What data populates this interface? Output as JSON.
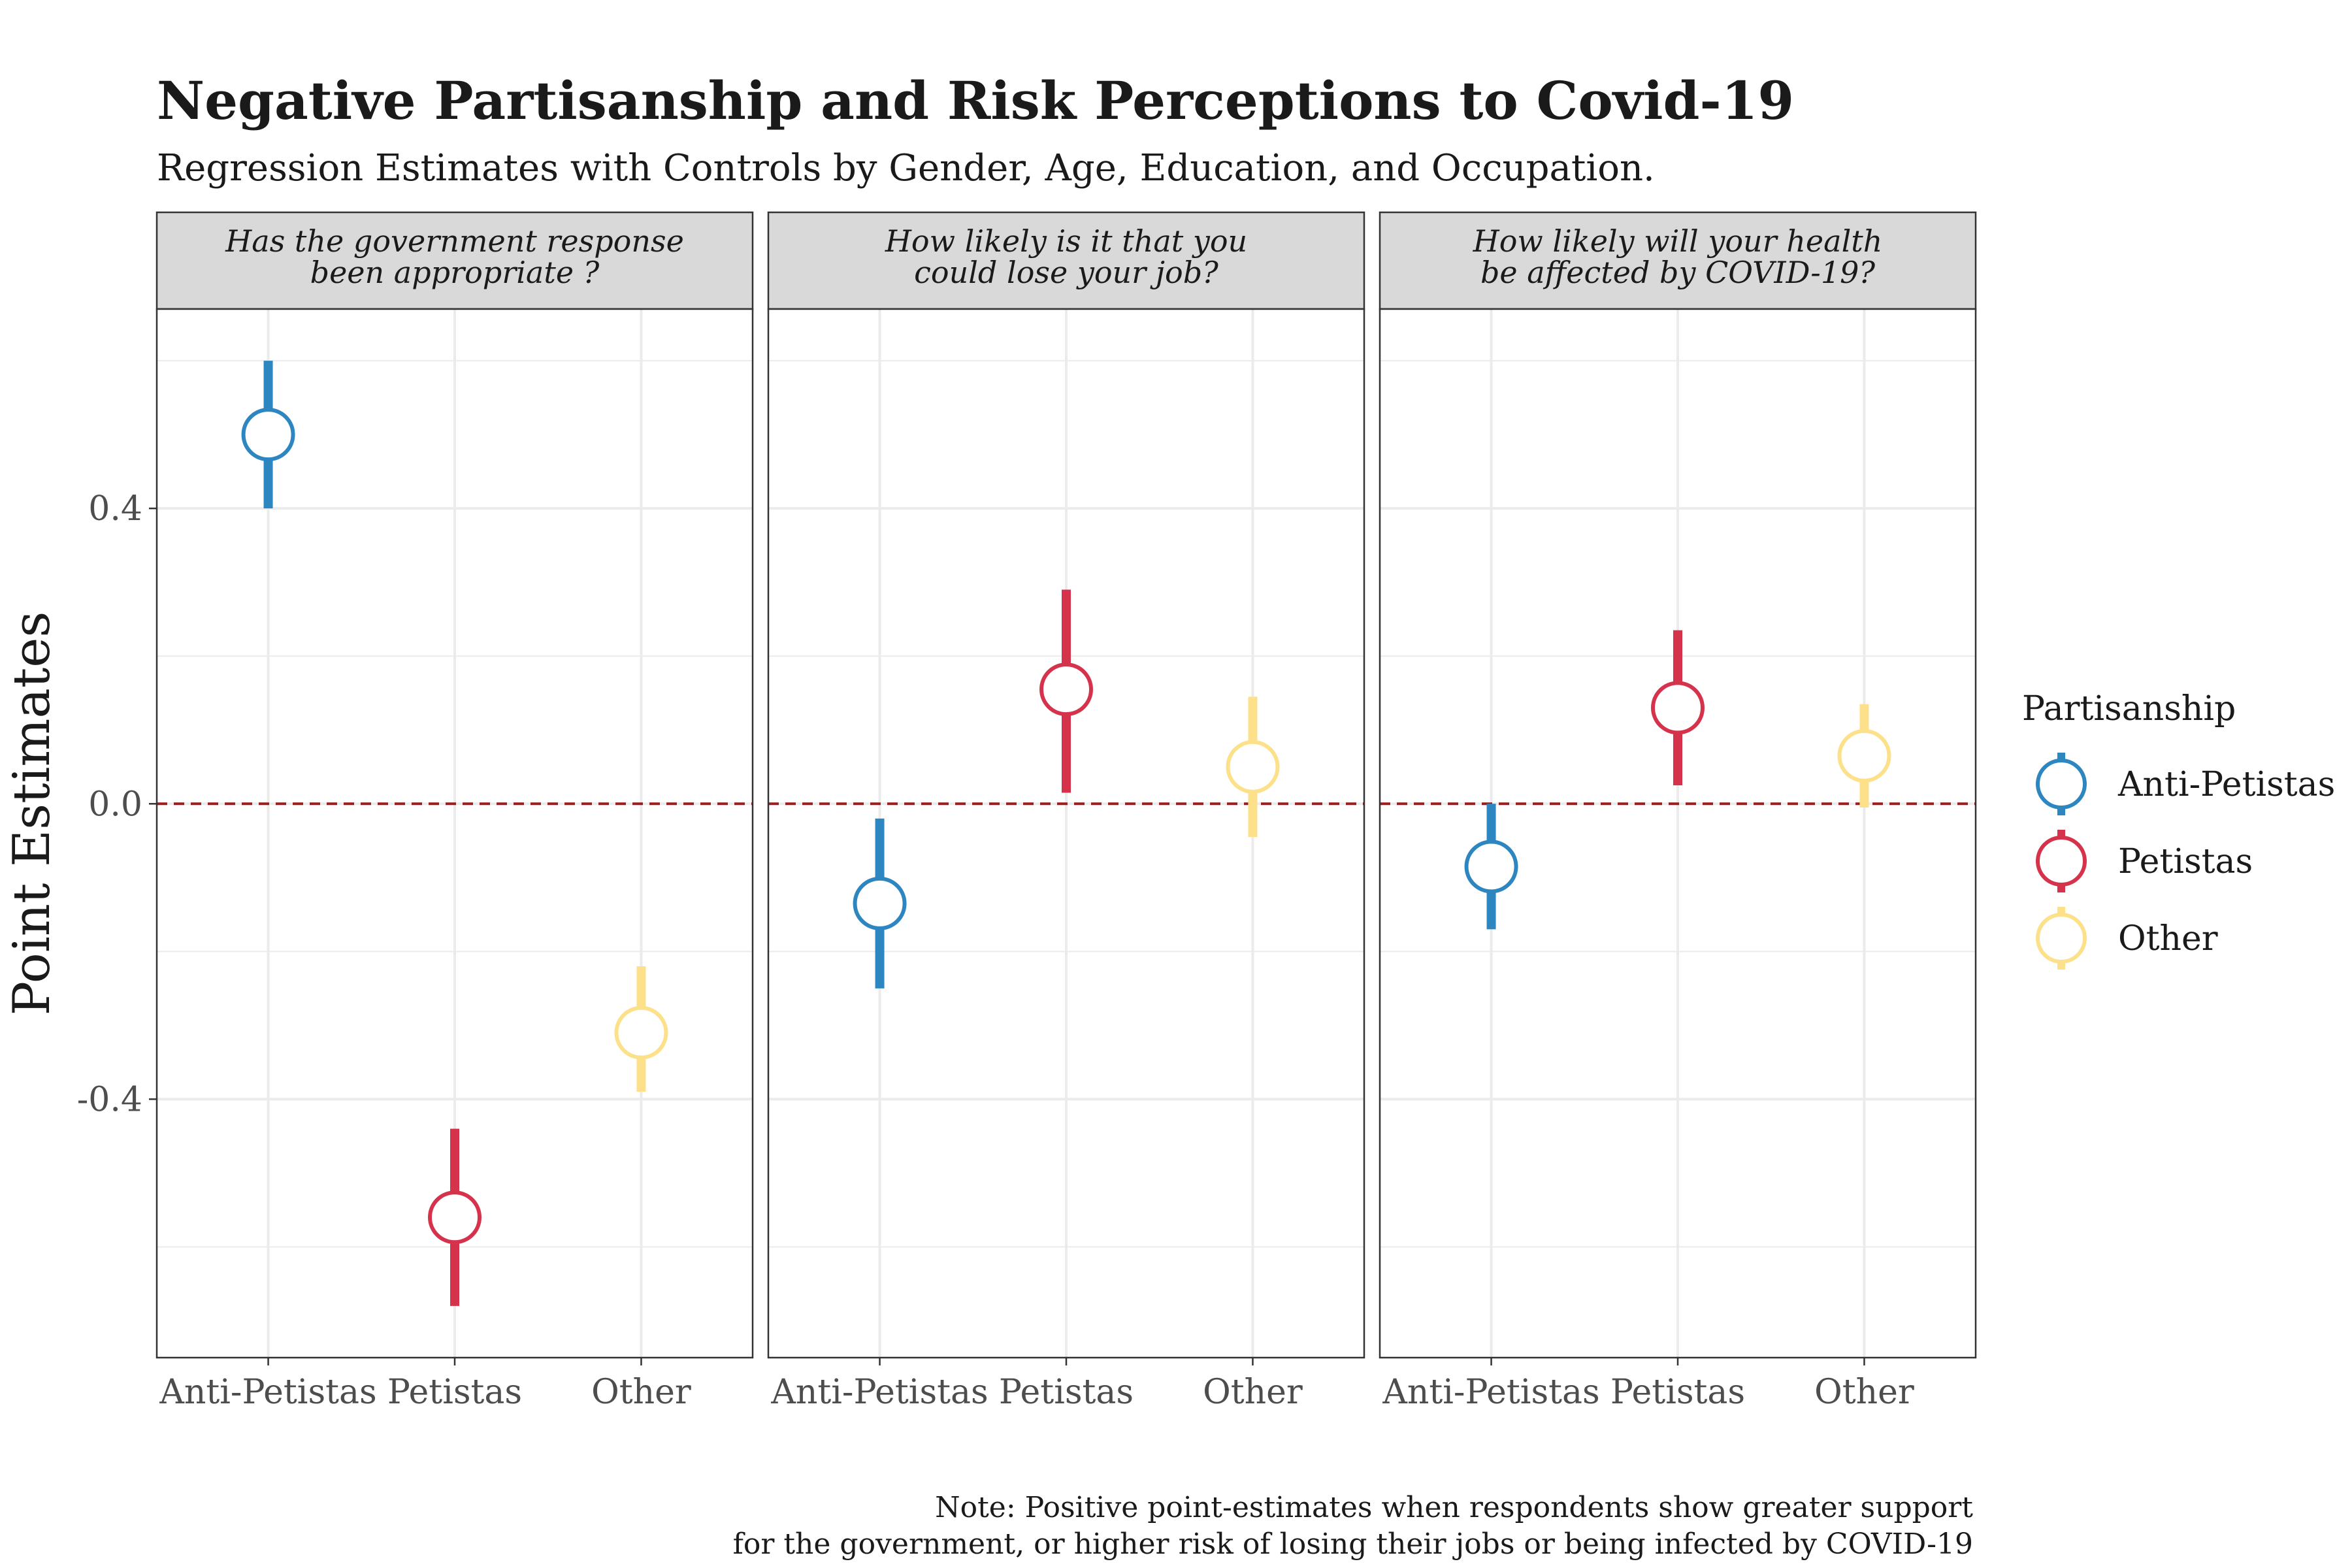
{
  "title": "Negative Partisanship and Risk Perceptions to Covid-19",
  "subtitle": "Regression Estimates with Controls by Gender, Age, Education, and Occupation.",
  "note": [
    "Note: Positive point-estimates when respondents show greater support",
    "for the government, or higher risk of losing their jobs or being infected by COVID-19"
  ],
  "colors": {
    "Anti-Petistas": "#2E86C1",
    "Petistas": "#D5334C",
    "Other": "#FCE08A",
    "zero_line": "#A01C1C",
    "panel_border": "#333333",
    "strip_bg": "#D9D9D9",
    "grid": "#EBEBEB"
  },
  "chart_data": {
    "type": "scatter",
    "ylabel": "Point Estimates",
    "ylim": [
      -0.75,
      0.67
    ],
    "yticks": [
      "0.4",
      "0.0",
      "-0.4"
    ],
    "ytick_values": [
      0.4,
      0.0,
      -0.4
    ],
    "reference_line": 0,
    "grid": true,
    "categories": [
      "Anti-Petistas",
      "Petistas",
      "Other"
    ],
    "legend": {
      "title": "Partisanship",
      "position": "right",
      "entries": [
        "Anti-Petistas",
        "Petistas",
        "Other"
      ]
    },
    "panels": [
      {
        "strip": [
          "Has the government response",
          "been appropriate ?"
        ],
        "points": [
          {
            "group": "Anti-Petistas",
            "estimate": 0.5,
            "lower": 0.4,
            "upper": 0.6
          },
          {
            "group": "Petistas",
            "estimate": -0.56,
            "lower": -0.68,
            "upper": -0.44
          },
          {
            "group": "Other",
            "estimate": -0.31,
            "lower": -0.39,
            "upper": -0.22
          }
        ]
      },
      {
        "strip": [
          "How likely is it that you",
          "could lose your job?"
        ],
        "points": [
          {
            "group": "Anti-Petistas",
            "estimate": -0.135,
            "lower": -0.25,
            "upper": -0.02
          },
          {
            "group": "Petistas",
            "estimate": 0.155,
            "lower": 0.015,
            "upper": 0.29
          },
          {
            "group": "Other",
            "estimate": 0.05,
            "lower": -0.045,
            "upper": 0.145
          }
        ]
      },
      {
        "strip": [
          "How likely will your health",
          "be affected by COVID-19?"
        ],
        "points": [
          {
            "group": "Anti-Petistas",
            "estimate": -0.085,
            "lower": -0.17,
            "upper": 0.0
          },
          {
            "group": "Petistas",
            "estimate": 0.13,
            "lower": 0.025,
            "upper": 0.235
          },
          {
            "group": "Other",
            "estimate": 0.065,
            "lower": -0.005,
            "upper": 0.135
          }
        ]
      }
    ]
  }
}
